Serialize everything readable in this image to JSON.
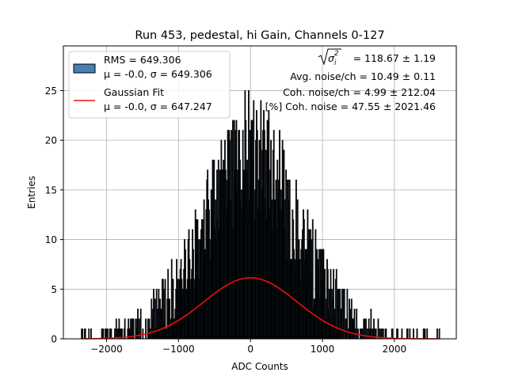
{
  "chart_data": {
    "type": "bar",
    "subtype": "histogram",
    "title": "Run 453, pedestal, hi Gain, Channels 0-127",
    "xlabel": "ADC Counts",
    "ylabel": "Entries",
    "xlim": [
      -2600,
      2860
    ],
    "ylim": [
      0,
      29.5
    ],
    "xticks": [
      -2000,
      -1000,
      0,
      1000,
      2000
    ],
    "xtick_labels": [
      "−2000",
      "−1000",
      "0",
      "1000",
      "2000"
    ],
    "yticks": [
      0,
      5,
      10,
      15,
      20,
      25
    ],
    "ytick_labels": [
      "0",
      "5",
      "10",
      "15",
      "20",
      "25"
    ],
    "grid": true,
    "histogram": {
      "name": "RMS = 649.306",
      "stats": "μ = -0.0, σ = 649.306",
      "color": "#4a7fb5",
      "edge_color": "#000000",
      "bin_width": 10,
      "range": [
        -2350,
        2620
      ],
      "total_entries": 3000,
      "spikes": [
        [
          -2350,
          1
        ],
        [
          -2000,
          1
        ],
        [
          -1250,
          3
        ],
        [
          -480,
          10
        ],
        [
          -260,
          11
        ],
        [
          -130,
          15
        ],
        [
          -20,
          14
        ],
        [
          0,
          21
        ],
        [
          60,
          15
        ],
        [
          130,
          13
        ],
        [
          300,
          11
        ],
        [
          560,
          8
        ],
        [
          1250,
          3
        ],
        [
          2100,
          1
        ],
        [
          2450,
          1
        ],
        [
          2620,
          1
        ]
      ]
    },
    "fit": {
      "name": "Gaussian Fit",
      "stats": "μ = -0.0, σ = 647.247",
      "mu": 0,
      "sigma": 647.247,
      "amplitude": 6.15,
      "color": "#e8100f",
      "range": [
        -2350,
        2620
      ]
    },
    "legend_position": "top-left",
    "annotations": [
      {
        "id": "sigma",
        "label": "= 118.67 ± 1.19"
      },
      {
        "id": "avg",
        "label": "Avg. noise/ch = 10.49 ± 0.11"
      },
      {
        "id": "coh",
        "label": "Coh. noise/ch = 4.99 ± 212.04"
      },
      {
        "id": "pct",
        "label": "[%] Coh. noise = 47.55 ± 2021.46"
      }
    ]
  }
}
